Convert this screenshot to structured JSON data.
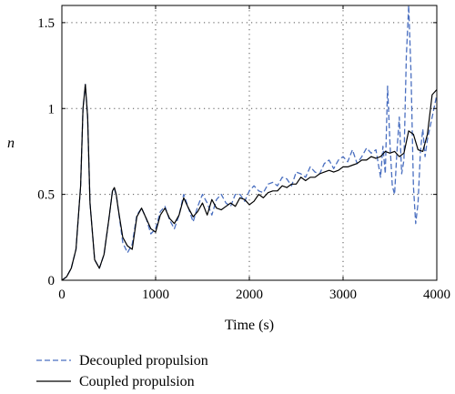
{
  "chart_data": {
    "type": "line",
    "title": "",
    "xlabel": "Time (s)",
    "ylabel": "n",
    "xlim": [
      0,
      4000
    ],
    "ylim": [
      0,
      1.6
    ],
    "xticks": [
      0,
      1000,
      2000,
      3000,
      4000
    ],
    "xtick_labels": [
      "0",
      "1000",
      "2000",
      "3000",
      "4000"
    ],
    "yticks": [
      0,
      0.5,
      1,
      1.5
    ],
    "ytick_labels": [
      "0",
      "0.5",
      "1",
      "1.5"
    ],
    "grid": "dotted",
    "legend_position": "bottom-left",
    "series": [
      {
        "name": "Decoupled propulsion",
        "color": "#4a6fc0",
        "style": "dashed",
        "x": [
          0,
          50,
          100,
          150,
          200,
          225,
          250,
          275,
          300,
          350,
          400,
          450,
          500,
          540,
          560,
          580,
          600,
          650,
          700,
          750,
          800,
          850,
          900,
          950,
          1000,
          1050,
          1100,
          1150,
          1200,
          1250,
          1300,
          1350,
          1400,
          1450,
          1500,
          1550,
          1600,
          1650,
          1700,
          1750,
          1800,
          1850,
          1900,
          1950,
          2000,
          2050,
          2100,
          2150,
          2200,
          2250,
          2300,
          2350,
          2400,
          2450,
          2500,
          2550,
          2600,
          2650,
          2700,
          2750,
          2800,
          2850,
          2900,
          2950,
          3000,
          3050,
          3100,
          3150,
          3200,
          3250,
          3300,
          3350,
          3400,
          3425,
          3450,
          3475,
          3500,
          3525,
          3550,
          3575,
          3600,
          3625,
          3650,
          3675,
          3700,
          3725,
          3750,
          3775,
          3800,
          3825,
          3850,
          3875,
          3900,
          3950,
          4000
        ],
        "values": [
          0,
          0.02,
          0.07,
          0.18,
          0.55,
          1.0,
          1.14,
          0.95,
          0.45,
          0.12,
          0.07,
          0.15,
          0.35,
          0.52,
          0.53,
          0.5,
          0.42,
          0.22,
          0.16,
          0.21,
          0.38,
          0.42,
          0.36,
          0.27,
          0.3,
          0.4,
          0.43,
          0.35,
          0.3,
          0.38,
          0.5,
          0.42,
          0.34,
          0.43,
          0.5,
          0.45,
          0.38,
          0.47,
          0.5,
          0.45,
          0.43,
          0.5,
          0.5,
          0.46,
          0.52,
          0.55,
          0.52,
          0.51,
          0.56,
          0.57,
          0.55,
          0.6,
          0.59,
          0.55,
          0.63,
          0.62,
          0.6,
          0.66,
          0.63,
          0.62,
          0.68,
          0.7,
          0.65,
          0.7,
          0.72,
          0.69,
          0.76,
          0.68,
          0.72,
          0.77,
          0.74,
          0.76,
          0.6,
          0.78,
          0.62,
          1.13,
          0.8,
          0.55,
          0.5,
          0.75,
          0.95,
          0.62,
          0.7,
          1.3,
          1.6,
          1.2,
          0.55,
          0.33,
          0.45,
          0.75,
          0.88,
          0.72,
          0.82,
          0.95,
          1.08
        ]
      },
      {
        "name": "Coupled propulsion",
        "color": "#000000",
        "style": "solid",
        "x": [
          0,
          50,
          100,
          150,
          200,
          225,
          250,
          275,
          300,
          350,
          400,
          450,
          500,
          540,
          560,
          580,
          600,
          650,
          700,
          750,
          800,
          850,
          900,
          950,
          1000,
          1050,
          1100,
          1150,
          1200,
          1250,
          1300,
          1350,
          1400,
          1450,
          1500,
          1550,
          1600,
          1650,
          1700,
          1750,
          1800,
          1850,
          1900,
          1950,
          2000,
          2050,
          2100,
          2150,
          2200,
          2250,
          2300,
          2350,
          2400,
          2450,
          2500,
          2550,
          2600,
          2650,
          2700,
          2750,
          2800,
          2850,
          2900,
          2950,
          3000,
          3050,
          3100,
          3150,
          3200,
          3250,
          3300,
          3350,
          3400,
          3450,
          3500,
          3550,
          3600,
          3650,
          3700,
          3750,
          3800,
          3850,
          3900,
          3950,
          4000
        ],
        "values": [
          0,
          0.02,
          0.07,
          0.18,
          0.55,
          1.0,
          1.14,
          0.95,
          0.45,
          0.12,
          0.07,
          0.15,
          0.35,
          0.52,
          0.54,
          0.5,
          0.42,
          0.25,
          0.2,
          0.18,
          0.37,
          0.42,
          0.36,
          0.3,
          0.28,
          0.38,
          0.42,
          0.36,
          0.33,
          0.38,
          0.48,
          0.42,
          0.37,
          0.4,
          0.45,
          0.38,
          0.47,
          0.42,
          0.41,
          0.43,
          0.45,
          0.43,
          0.48,
          0.47,
          0.44,
          0.46,
          0.5,
          0.48,
          0.51,
          0.52,
          0.52,
          0.55,
          0.54,
          0.56,
          0.56,
          0.6,
          0.58,
          0.6,
          0.6,
          0.62,
          0.63,
          0.64,
          0.63,
          0.64,
          0.66,
          0.66,
          0.67,
          0.68,
          0.7,
          0.7,
          0.72,
          0.71,
          0.72,
          0.75,
          0.74,
          0.75,
          0.72,
          0.74,
          0.87,
          0.85,
          0.76,
          0.75,
          0.85,
          1.08,
          1.11
        ]
      }
    ]
  }
}
